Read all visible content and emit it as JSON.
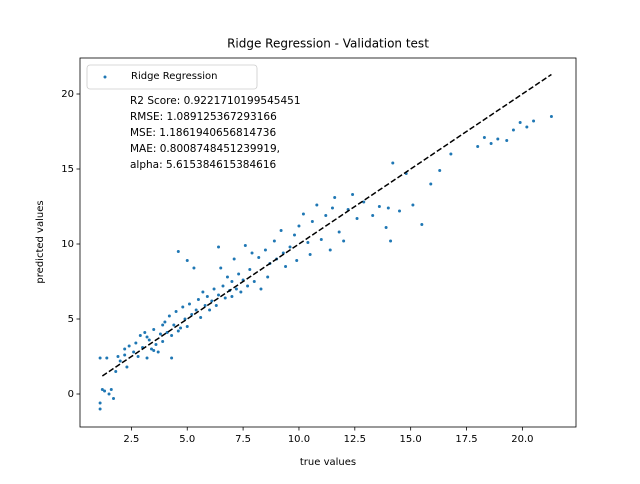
{
  "chart_data": {
    "type": "scatter",
    "title": "Ridge Regression - Validation test",
    "xlabel": "true values",
    "ylabel": "predicted values",
    "xlim": [
      0.2,
      22.4
    ],
    "ylim": [
      -2.2,
      22.4
    ],
    "xticks": [
      2.5,
      {
        "value": 5,
        "label": "5.0"
      },
      7.5,
      {
        "value": 10,
        "label": "10.0"
      },
      12.5,
      {
        "value": 15,
        "label": "15.0"
      },
      17.5,
      {
        "value": 20,
        "label": "20.0"
      }
    ],
    "yticks": [
      0,
      5,
      10,
      15,
      20
    ],
    "legend": "upper left",
    "annotation_lines": [
      "R2 Score: 0.9221710199545451",
      "RMSE: 1.089125367293166",
      "MSE: 1.1861940656814736",
      "MAE: 0.8008748451239919,",
      "alpha: 5.615384615384616"
    ],
    "series": [
      {
        "name": "Ridge Regression",
        "color": "#1f77b4",
        "x": [
          1.1,
          1.1,
          1.2,
          1.3,
          1.5,
          1.6,
          1.7,
          1.1,
          1.4,
          1.8,
          2.0,
          2.2,
          2.3,
          2.4,
          2.2,
          1.9,
          2.6,
          2.7,
          2.8,
          2.9,
          3.0,
          3.1,
          3.2,
          3.3,
          3.4,
          3.5,
          3.6,
          3.7,
          3.8,
          3.9,
          4.0,
          3.2,
          3.5,
          3.9,
          4.1,
          4.2,
          4.3,
          4.4,
          4.5,
          4.6,
          4.7,
          4.8,
          4.9,
          5.0,
          5.1,
          5.2,
          5.3,
          5.4,
          5.5,
          5.6,
          5.7,
          5.8,
          5.9,
          6.0,
          4.6,
          4.3,
          5.0,
          6.1,
          6.2,
          6.3,
          6.4,
          6.5,
          6.6,
          6.7,
          6.8,
          6.9,
          7.0,
          7.1,
          7.2,
          7.3,
          7.4,
          7.5,
          7.6,
          7.7,
          7.8,
          7.9,
          8.0,
          7.0,
          6.4,
          8.2,
          8.3,
          8.5,
          8.7,
          8.9,
          9.0,
          9.2,
          9.4,
          9.6,
          9.8,
          9.9,
          10.0,
          8.6,
          9.3,
          10.2,
          10.4,
          10.6,
          10.8,
          11.0,
          11.2,
          11.4,
          11.6,
          11.8,
          12.0,
          12.2,
          12.4,
          12.6,
          12.9,
          10.5,
          11.5,
          13.3,
          13.6,
          13.9,
          14.1,
          14.2,
          14.5,
          14.8,
          15.1,
          15.5,
          15.9,
          16.3,
          16.8,
          14.0,
          18.0,
          18.3,
          18.9,
          19.3,
          19.6,
          19.9,
          20.2,
          20.5,
          21.3,
          18.6
        ],
        "values": [
          -1.0,
          -0.6,
          0.3,
          0.2,
          0.0,
          0.3,
          -0.3,
          2.4,
          2.4,
          1.5,
          2.2,
          2.6,
          1.8,
          3.2,
          3.0,
          2.5,
          2.8,
          3.4,
          2.5,
          3.9,
          3.1,
          4.1,
          2.4,
          3.6,
          3.0,
          4.3,
          3.3,
          2.8,
          4.0,
          3.5,
          4.8,
          3.8,
          2.9,
          4.6,
          4.1,
          5.2,
          3.9,
          4.6,
          5.5,
          9.5,
          4.4,
          5.8,
          5.0,
          4.5,
          6.0,
          5.3,
          8.4,
          5.6,
          6.3,
          5.1,
          6.8,
          5.9,
          6.5,
          5.6,
          4.2,
          2.4,
          8.9,
          6.2,
          7.0,
          5.9,
          6.6,
          8.4,
          7.2,
          6.4,
          7.8,
          6.9,
          7.5,
          9.0,
          7.0,
          8.0,
          6.8,
          7.6,
          9.9,
          7.2,
          8.3,
          9.4,
          7.5,
          6.5,
          9.8,
          9.1,
          7.0,
          9.6,
          8.7,
          10.2,
          9.0,
          10.9,
          8.5,
          9.8,
          10.6,
          8.9,
          11.2,
          7.8,
          9.4,
          12.0,
          10.1,
          11.5,
          12.6,
          10.3,
          11.9,
          9.6,
          13.1,
          10.8,
          10.2,
          12.3,
          13.3,
          11.7,
          12.8,
          9.3,
          12.4,
          11.9,
          12.5,
          11.1,
          10.2,
          15.4,
          12.2,
          14.7,
          12.6,
          11.3,
          14.0,
          14.9,
          16.0,
          12.4,
          16.5,
          17.1,
          17.0,
          16.9,
          17.6,
          18.1,
          17.8,
          18.2,
          18.5,
          16.7
        ]
      }
    ],
    "reference_line": {
      "x": [
        1.2,
        21.3
      ],
      "values": [
        1.2,
        21.3
      ],
      "color": "#000000",
      "style": "dashed"
    }
  }
}
